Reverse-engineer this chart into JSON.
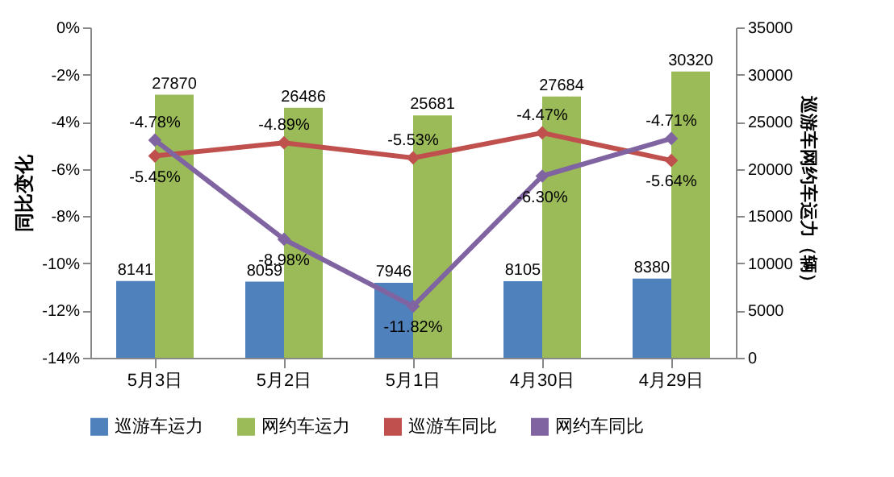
{
  "chart_data": {
    "type": "bar",
    "ylabel": "同比变化",
    "y2label": "巡游车网约车运力（辆）",
    "categories": [
      "5月3日",
      "5月2日",
      "5月1日",
      "4月30日",
      "4月29日"
    ],
    "series": [
      {
        "name": "巡游车运力",
        "axis": "y2",
        "color": "#4f81bd",
        "values": [
          8141,
          8059,
          7946,
          8105,
          8380
        ]
      },
      {
        "name": "网约车运力",
        "axis": "y2",
        "color": "#9bbb59",
        "values": [
          27870,
          26486,
          25681,
          27684,
          30320
        ]
      },
      {
        "name": "巡游车同比",
        "type": "line",
        "color": "#c0504d",
        "values": [
          -5.45,
          -4.89,
          -5.53,
          -4.47,
          -5.64
        ],
        "value_labels": [
          "-5.45%",
          "-4.89%",
          "-5.53%",
          "-4.47%",
          "-5.64%"
        ]
      },
      {
        "name": "网约车同比",
        "type": "line",
        "color": "#8064a2",
        "values": [
          -4.78,
          -8.98,
          -11.82,
          -6.3,
          -4.71
        ],
        "value_labels": [
          "-4.78%",
          "-8.98%",
          "-11.82%",
          "-6.30%",
          "-4.71%"
        ]
      }
    ],
    "ylim": [
      -14,
      0
    ],
    "yticks": [
      {
        "value": 0,
        "label": "0%"
      },
      {
        "value": -2,
        "label": "-2%"
      },
      {
        "value": -4,
        "label": "-4%"
      },
      {
        "value": -6,
        "label": "-6%"
      },
      {
        "value": -8,
        "label": "-8%"
      },
      {
        "value": -10,
        "label": "-10%"
      },
      {
        "value": -12,
        "label": "-12%"
      },
      {
        "value": -14,
        "label": "-14%"
      }
    ],
    "y2lim": [
      0,
      35000
    ],
    "y2ticks": [
      0,
      5000,
      10000,
      15000,
      20000,
      25000,
      30000,
      35000
    ],
    "data_labels": true,
    "legend": "bottom",
    "marker": "diamond",
    "grid": false
  }
}
